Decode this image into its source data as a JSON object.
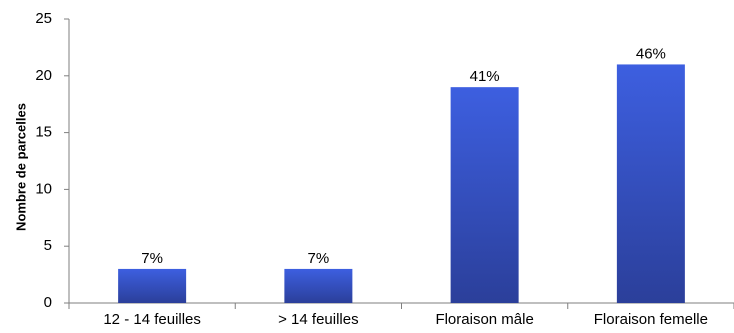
{
  "chart_data": {
    "type": "bar",
    "categories": [
      "12 - 14 feuilles",
      "> 14 feuilles",
      "Floraison mâle",
      "Floraison femelle"
    ],
    "values": [
      3,
      3,
      19,
      21
    ],
    "data_labels": [
      "7%",
      "7%",
      "41%",
      "46%"
    ],
    "title": "",
    "xlabel": "",
    "ylabel": "Nombre de parcelles",
    "ylim": [
      0,
      25
    ],
    "yticks": [
      "0",
      "5",
      "10",
      "15",
      "20",
      "25"
    ],
    "grid": false,
    "legend": "none",
    "colors": {
      "bar_top": "#3d5fe0",
      "bar_bottom": "#2b3f9a",
      "axis": "#7f7f7f"
    }
  }
}
